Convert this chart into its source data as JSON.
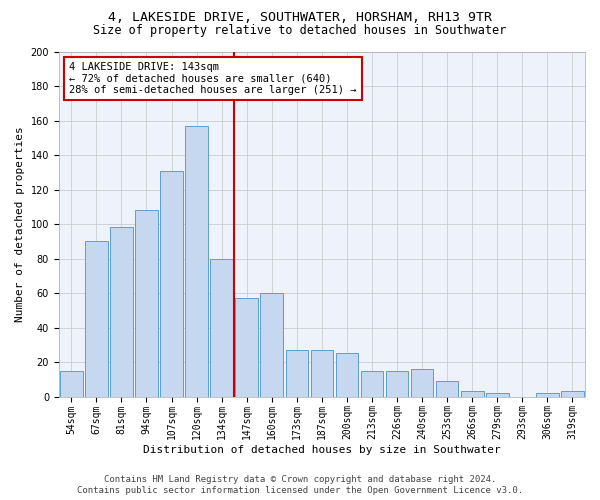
{
  "title_line1": "4, LAKESIDE DRIVE, SOUTHWATER, HORSHAM, RH13 9TR",
  "title_line2": "Size of property relative to detached houses in Southwater",
  "xlabel": "Distribution of detached houses by size in Southwater",
  "ylabel": "Number of detached properties",
  "categories": [
    "54sqm",
    "67sqm",
    "81sqm",
    "94sqm",
    "107sqm",
    "120sqm",
    "134sqm",
    "147sqm",
    "160sqm",
    "173sqm",
    "187sqm",
    "200sqm",
    "213sqm",
    "226sqm",
    "240sqm",
    "253sqm",
    "266sqm",
    "279sqm",
    "293sqm",
    "306sqm",
    "319sqm"
  ],
  "values": [
    15,
    90,
    98,
    108,
    131,
    157,
    80,
    57,
    60,
    27,
    27,
    25,
    15,
    15,
    16,
    9,
    3,
    2,
    0,
    2,
    3
  ],
  "bar_color": "#c5d8f0",
  "bar_edge_color": "#5a9fd4",
  "vline_color": "#cc0000",
  "annotation_text": "4 LAKESIDE DRIVE: 143sqm\n← 72% of detached houses are smaller (640)\n28% of semi-detached houses are larger (251) →",
  "annotation_box_color": "#ffffff",
  "annotation_box_edge": "#cc0000",
  "ylim": [
    0,
    200
  ],
  "yticks": [
    0,
    20,
    40,
    60,
    80,
    100,
    120,
    140,
    160,
    180,
    200
  ],
  "grid_color": "#cccccc",
  "bg_color": "#eef2fa",
  "footer_line1": "Contains HM Land Registry data © Crown copyright and database right 2024.",
  "footer_line2": "Contains public sector information licensed under the Open Government Licence v3.0.",
  "title_fontsize": 9.5,
  "subtitle_fontsize": 8.5,
  "axis_label_fontsize": 8,
  "tick_fontsize": 7,
  "annotation_fontsize": 7.5,
  "footer_fontsize": 6.5
}
